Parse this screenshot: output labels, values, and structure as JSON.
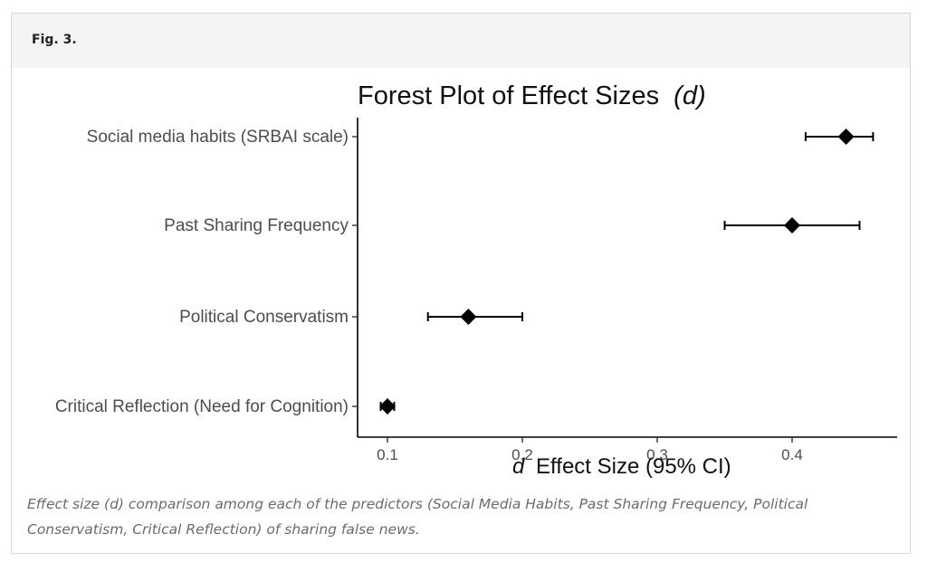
{
  "figure": {
    "label": "Fig. 3.",
    "caption": "Effect size (d) comparison among each of the predictors (Social Media Habits, Past Sharing Frequency, Political Conservatism, Critical Reflection) of sharing false news."
  },
  "chart_data": {
    "type": "scatter",
    "subtype": "forest plot",
    "title": "Forest Plot of Effect Sizes",
    "title_italic_suffix": "(d)",
    "xlabel_italic_prefix": "d",
    "xlabel": "Effect Size (95% CI)",
    "ylabel": "",
    "xlim": [
      0.08,
      0.485
    ],
    "xticks": [
      0.1,
      0.2,
      0.3,
      0.4
    ],
    "xtick_labels": [
      "0.1",
      "0.2",
      "0.3",
      "0.4"
    ],
    "grid": false,
    "legend": "none",
    "marker": "diamond",
    "marker_color": "#000000",
    "rows": [
      {
        "label": "Social media habits (SRBAI scale)",
        "estimate": 0.44,
        "ci_low": 0.41,
        "ci_high": 0.46
      },
      {
        "label": "Past Sharing Frequency",
        "estimate": 0.4,
        "ci_low": 0.35,
        "ci_high": 0.45
      },
      {
        "label": "Political Conservatism",
        "estimate": 0.16,
        "ci_low": 0.13,
        "ci_high": 0.2
      },
      {
        "label": "Critical Reflection (Need for Cognition)",
        "estimate": 0.1,
        "ci_low": 0.095,
        "ci_high": 0.105
      }
    ]
  }
}
